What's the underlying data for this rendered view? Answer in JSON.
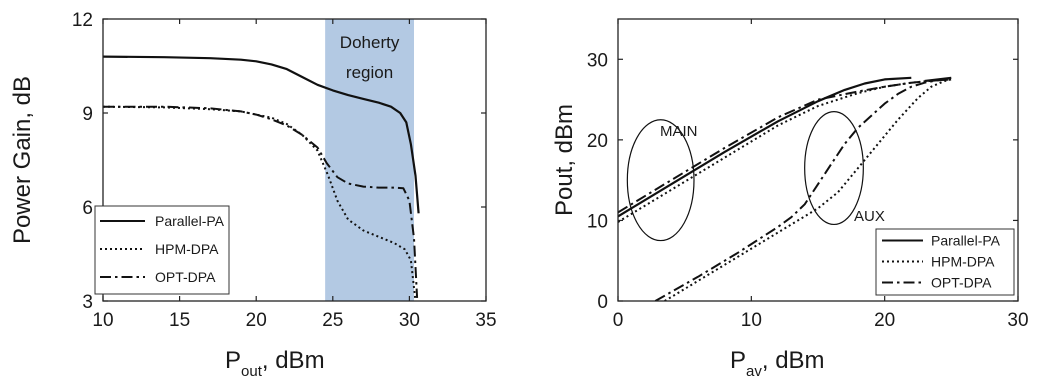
{
  "chart_data": [
    {
      "type": "line",
      "ylabel": "Power Gain, dB",
      "xlabel_main": "P",
      "xlabel_sub": "out",
      "xlabel_tail": ", dBm",
      "xlim": [
        10,
        35
      ],
      "ylim": [
        3,
        12
      ],
      "xticks": [
        10,
        15,
        20,
        25,
        30,
        35
      ],
      "yticks": [
        3,
        6,
        9,
        12
      ],
      "grid": false,
      "legend_position": "bottom-left",
      "shaded_region": {
        "x": [
          24.5,
          30.3
        ],
        "label_line1": "Doherty",
        "label_line2": "region",
        "color": "#b3c9e3"
      },
      "series": [
        {
          "name": "Parallel-PA",
          "style": "solid",
          "x": [
            10,
            14,
            17,
            19,
            20,
            21,
            22,
            23,
            24,
            25,
            26,
            27,
            28,
            28.8,
            29.4,
            29.8,
            30.1,
            30.4,
            30.6
          ],
          "y": [
            10.8,
            10.78,
            10.75,
            10.7,
            10.65,
            10.55,
            10.4,
            10.15,
            9.9,
            9.72,
            9.57,
            9.45,
            9.33,
            9.2,
            9.0,
            8.7,
            8.0,
            7.0,
            5.8
          ]
        },
        {
          "name": "HPM-DPA",
          "style": "dotted",
          "x": [
            10,
            14,
            17,
            19,
            20,
            21,
            22,
            23,
            24,
            24.7,
            25.3,
            26,
            27,
            28,
            29,
            29.7,
            30.1,
            30.4
          ],
          "y": [
            9.2,
            9.18,
            9.12,
            9.05,
            8.95,
            8.85,
            8.65,
            8.3,
            7.8,
            7.0,
            6.2,
            5.6,
            5.25,
            5.05,
            4.85,
            4.65,
            4.3,
            3.0
          ]
        },
        {
          "name": "OPT-DPA",
          "style": "dashdot",
          "x": [
            10,
            14,
            17,
            19,
            20,
            21,
            22,
            23,
            24,
            24.6,
            25.3,
            26,
            27,
            28,
            29,
            29.6,
            30.0,
            30.3,
            30.5
          ],
          "y": [
            9.2,
            9.2,
            9.15,
            9.05,
            8.95,
            8.8,
            8.6,
            8.3,
            7.9,
            7.4,
            6.95,
            6.75,
            6.65,
            6.62,
            6.62,
            6.6,
            6.2,
            5.0,
            3.1
          ]
        }
      ]
    },
    {
      "type": "line",
      "ylabel": "Pout, dBm",
      "xlabel_main": "P",
      "xlabel_sub": "av",
      "xlabel_tail": ", dBm",
      "xlim": [
        0,
        30
      ],
      "ylim": [
        0,
        35
      ],
      "xticks": [
        0,
        10,
        20,
        30
      ],
      "yticks": [
        0,
        10,
        20,
        30
      ],
      "grid": false,
      "legend_position": "bottom-right",
      "annotations": [
        {
          "text": "MAIN",
          "ellipse_center": [
            3.2,
            15
          ],
          "ellipse_radii": [
            2.5,
            7.5
          ]
        },
        {
          "text": "AUX",
          "ellipse_center": [
            16.2,
            16.5
          ],
          "ellipse_radii": [
            2.2,
            7
          ]
        }
      ],
      "series": [
        {
          "name": "Parallel-PA",
          "style": "solid",
          "group": "MAIN",
          "x": [
            0,
            4,
            8,
            12,
            15,
            17,
            18.5,
            20,
            22
          ],
          "y": [
            10.5,
            14.5,
            18.5,
            22.3,
            24.8,
            26.2,
            27.0,
            27.5,
            27.7
          ]
        },
        {
          "name": "HPM-DPA",
          "style": "dotted",
          "group": "MAIN",
          "x": [
            0,
            4,
            8,
            12,
            15,
            18,
            20,
            22,
            24,
            25
          ],
          "y": [
            9.8,
            13.8,
            17.8,
            21.8,
            24.2,
            25.8,
            26.6,
            27.1,
            27.4,
            27.5
          ]
        },
        {
          "name": "OPT-DPA",
          "style": "dashdot",
          "group": "MAIN",
          "x": [
            0,
            4,
            8,
            12,
            15,
            18,
            20,
            22,
            24,
            25
          ],
          "y": [
            11.0,
            15.0,
            19.0,
            22.8,
            25.0,
            26.0,
            26.6,
            27.1,
            27.4,
            27.5
          ]
        },
        {
          "name": "Parallel-PA",
          "style": "solid",
          "group": "AUX",
          "x": [
            23,
            25
          ],
          "y": [
            27.3,
            27.7
          ]
        },
        {
          "name": "HPM-DPA",
          "style": "dotted",
          "group": "AUX",
          "x": [
            3.5,
            6,
            9,
            12,
            13.5,
            15,
            16.5,
            18,
            19.5,
            21,
            22.5,
            23.5,
            24.5,
            25
          ],
          "y": [
            0,
            2.5,
            5.5,
            8.5,
            10.0,
            11.5,
            13.5,
            16.5,
            19.5,
            22.5,
            25.2,
            26.6,
            27.3,
            27.5
          ]
        },
        {
          "name": "OPT-DPA",
          "style": "dashdot",
          "group": "AUX",
          "x": [
            2.8,
            6,
            9,
            12,
            13,
            14,
            15,
            16,
            17,
            18,
            19,
            20,
            21,
            22,
            23,
            24,
            25
          ],
          "y": [
            0,
            3.0,
            6.0,
            9.2,
            10.4,
            12.0,
            14.5,
            17.0,
            19.5,
            21.5,
            23.0,
            24.5,
            25.7,
            26.6,
            27.1,
            27.4,
            27.5
          ]
        }
      ]
    }
  ]
}
